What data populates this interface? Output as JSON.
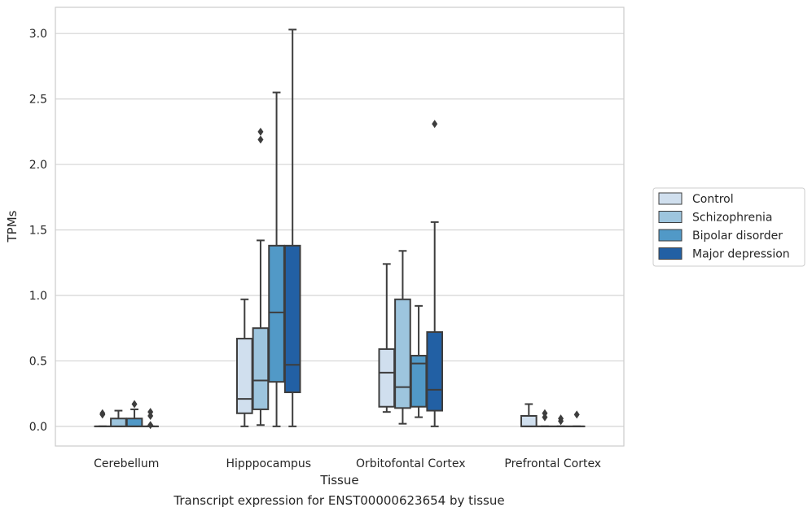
{
  "chart_data": {
    "type": "box",
    "xlabel": "Tissue",
    "ylabel": "TPMs",
    "caption": "Transcript expression for ENST00000623654 by tissue",
    "ylim": [
      -0.15,
      3.2
    ],
    "yticks": [
      0.0,
      0.5,
      1.0,
      1.5,
      2.0,
      2.5,
      3.0
    ],
    "ytick_labels": [
      "0.0",
      "0.5",
      "1.0",
      "1.5",
      "2.0",
      "2.5",
      "3.0"
    ],
    "grid": "horizontal",
    "legend_position": "right",
    "categories": [
      "Cerebellum",
      "Hipppocampus",
      "Orbitofontal Cortex",
      "Prefrontal Cortex"
    ],
    "series": [
      {
        "name": "Control",
        "color": "#d0dfee",
        "boxes": [
          {
            "q1": 0.0,
            "median": 0.0,
            "q3": 0.0,
            "whisker_low": 0.0,
            "whisker_high": 0.0,
            "outliers": [
              0.1,
              0.09
            ]
          },
          {
            "q1": 0.1,
            "median": 0.21,
            "q3": 0.67,
            "whisker_low": 0.0,
            "whisker_high": 0.97,
            "outliers": []
          },
          {
            "q1": 0.15,
            "median": 0.41,
            "q3": 0.59,
            "whisker_low": 0.11,
            "whisker_high": 1.24,
            "outliers": []
          },
          {
            "q1": 0.0,
            "median": 0.0,
            "q3": 0.08,
            "whisker_low": 0.0,
            "whisker_high": 0.17,
            "outliers": []
          }
        ]
      },
      {
        "name": "Schizophrenia",
        "color": "#9dc5de",
        "boxes": [
          {
            "q1": 0.0,
            "median": 0.0,
            "q3": 0.06,
            "whisker_low": 0.0,
            "whisker_high": 0.12,
            "outliers": []
          },
          {
            "q1": 0.13,
            "median": 0.35,
            "q3": 0.75,
            "whisker_low": 0.01,
            "whisker_high": 1.42,
            "outliers": [
              2.25,
              2.19
            ]
          },
          {
            "q1": 0.14,
            "median": 0.3,
            "q3": 0.97,
            "whisker_low": 0.02,
            "whisker_high": 1.34,
            "outliers": []
          },
          {
            "q1": 0.0,
            "median": 0.0,
            "q3": 0.0,
            "whisker_low": 0.0,
            "whisker_high": 0.0,
            "outliers": [
              0.1,
              0.07
            ]
          }
        ]
      },
      {
        "name": "Bipolar disorder",
        "color": "#5199c7",
        "boxes": [
          {
            "q1": 0.0,
            "median": 0.0,
            "q3": 0.06,
            "whisker_low": 0.0,
            "whisker_high": 0.13,
            "outliers": [
              0.17
            ]
          },
          {
            "q1": 0.34,
            "median": 0.87,
            "q3": 1.38,
            "whisker_low": 0.0,
            "whisker_high": 2.55,
            "outliers": []
          },
          {
            "q1": 0.15,
            "median": 0.48,
            "q3": 0.54,
            "whisker_low": 0.07,
            "whisker_high": 0.92,
            "outliers": []
          },
          {
            "q1": 0.0,
            "median": 0.0,
            "q3": 0.0,
            "whisker_low": 0.0,
            "whisker_high": 0.0,
            "outliers": [
              0.06,
              0.04
            ]
          }
        ]
      },
      {
        "name": "Major depression",
        "color": "#2260a4",
        "boxes": [
          {
            "q1": 0.0,
            "median": 0.0,
            "q3": 0.0,
            "whisker_low": 0.0,
            "whisker_high": 0.0,
            "outliers": [
              0.11,
              0.08,
              0.01
            ]
          },
          {
            "q1": 0.26,
            "median": 0.47,
            "q3": 1.38,
            "whisker_low": 0.0,
            "whisker_high": 3.03,
            "outliers": []
          },
          {
            "q1": 0.12,
            "median": 0.28,
            "q3": 0.72,
            "whisker_low": 0.0,
            "whisker_high": 1.56,
            "outliers": [
              2.31
            ]
          },
          {
            "q1": 0.0,
            "median": 0.0,
            "q3": 0.0,
            "whisker_low": 0.0,
            "whisker_high": 0.0,
            "outliers": [
              0.09
            ]
          }
        ]
      }
    ]
  }
}
